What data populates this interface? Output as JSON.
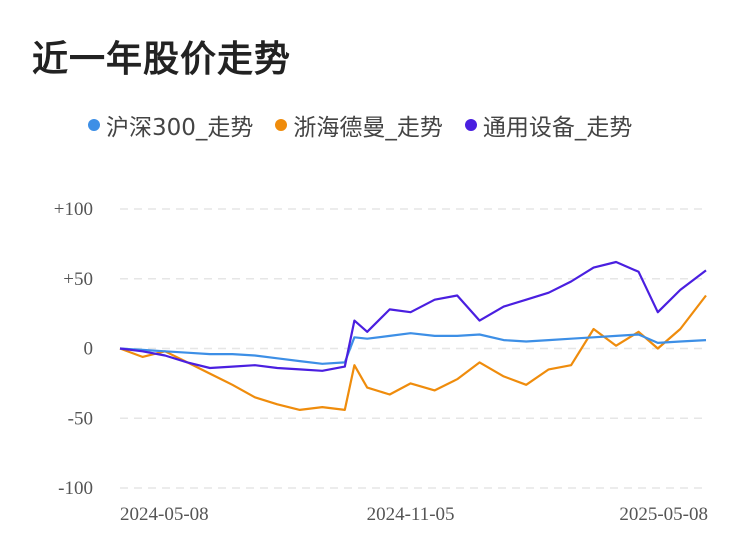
{
  "chart_data": {
    "type": "line",
    "title": "近一年股价走势",
    "legend_position": "top",
    "grid": true,
    "yticks": [
      "+100",
      "+50",
      "0",
      "-50",
      "-100"
    ],
    "ylim": [
      -100,
      100
    ],
    "xticks": [
      "2024-05-08",
      "2024-11-05",
      "2025-05-08"
    ],
    "x": [
      "2024-05-08",
      "2024-05-22",
      "2024-06-05",
      "2024-06-19",
      "2024-07-03",
      "2024-07-17",
      "2024-07-31",
      "2024-08-14",
      "2024-08-28",
      "2024-09-11",
      "2024-09-25",
      "2024-10-01",
      "2024-10-09",
      "2024-10-23",
      "2024-11-05",
      "2024-11-20",
      "2024-12-04",
      "2024-12-18",
      "2025-01-02",
      "2025-01-16",
      "2025-01-30",
      "2025-02-13",
      "2025-02-27",
      "2025-03-13",
      "2025-03-27",
      "2025-04-08",
      "2025-04-22",
      "2025-05-08"
    ],
    "series": [
      {
        "name": "沪深300_走势",
        "color": "#3d8fe6",
        "values": [
          0,
          -1,
          -2,
          -3,
          -4,
          -4,
          -5,
          -7,
          -9,
          -11,
          -10,
          8,
          7,
          9,
          11,
          9,
          9,
          10,
          6,
          5,
          6,
          7,
          8,
          9,
          10,
          4,
          5,
          6
        ]
      },
      {
        "name": "浙海德曼_走势",
        "color": "#ef8c0c",
        "values": [
          0,
          -6,
          -2,
          -10,
          -18,
          -26,
          -35,
          -40,
          -44,
          -42,
          -44,
          -12,
          -28,
          -33,
          -25,
          -30,
          -22,
          -10,
          -20,
          -26,
          -15,
          -12,
          14,
          2,
          12,
          0,
          14,
          38
        ]
      },
      {
        "name": "通用设备_走势",
        "color": "#4a1fe0",
        "values": [
          0,
          -2,
          -5,
          -10,
          -14,
          -13,
          -12,
          -14,
          -15,
          -16,
          -13,
          20,
          12,
          28,
          26,
          35,
          38,
          20,
          30,
          35,
          40,
          48,
          58,
          62,
          55,
          26,
          42,
          56
        ]
      }
    ]
  }
}
